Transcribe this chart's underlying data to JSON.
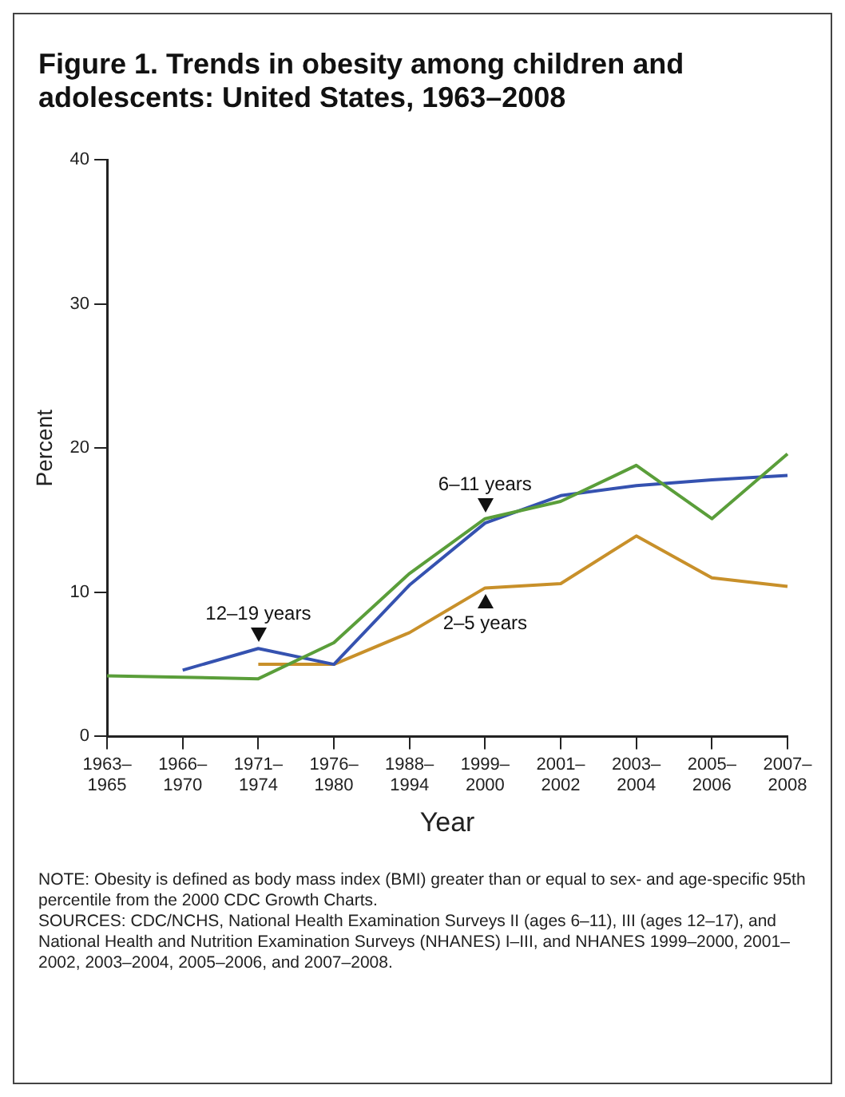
{
  "chart_data": {
    "type": "line",
    "title": "Figure 1. Trends in obesity among children and adolescents: United States, 1963–2008",
    "xlabel": "Year",
    "ylabel": "Percent",
    "categories": [
      "1963–1965",
      "1966–1970",
      "1971–1974",
      "1976–1980",
      "1988–1994",
      "1999–2000",
      "2001–2002",
      "2003–2004",
      "2005–2006",
      "2007–2008"
    ],
    "series": [
      {
        "color": "#5a9e3a",
        "values": [
          4.2,
          null,
          4.0,
          6.5,
          11.3,
          15.1,
          16.3,
          18.8,
          15.1,
          19.6
        ]
      },
      {
        "color": "#3552b0",
        "values": [
          null,
          4.6,
          6.1,
          5.0,
          10.5,
          14.8,
          16.7,
          17.4,
          17.8,
          18.1
        ]
      },
      {
        "color": "#c8902a",
        "values": [
          null,
          null,
          5.0,
          5.0,
          7.2,
          10.3,
          10.6,
          13.9,
          11.0,
          10.4
        ]
      }
    ],
    "ylim": [
      0,
      40
    ],
    "yticks": [
      0,
      10,
      20,
      30,
      40
    ],
    "grid": false,
    "legend": false,
    "marker": "none",
    "line_style": "solid",
    "annotations": [
      {
        "text": "6–11 years",
        "x": "1999–2000",
        "y": 15.1
      },
      {
        "text": "2–5 years",
        "x": "1999–2000",
        "y": 10.3
      },
      {
        "text": "12–19 years",
        "x": "1971–1974",
        "y": 6.1
      },
      "NOTE: Obesity is defined as body mass index (BMI) greater than or equal to sex- and age-specific 95th percentile from the 2000 CDC Growth Charts.",
      "SOURCES: CDC/NCHS, National Health Examination Surveys II (ages 6–11), III (ages 12–17), and National Health and Nutrition Examination Surveys (NHANES) I–III, and NHANES 1999–2000, 2001–2002, 2003–2004, 2005–2006, and 2007–2008."
    ]
  }
}
